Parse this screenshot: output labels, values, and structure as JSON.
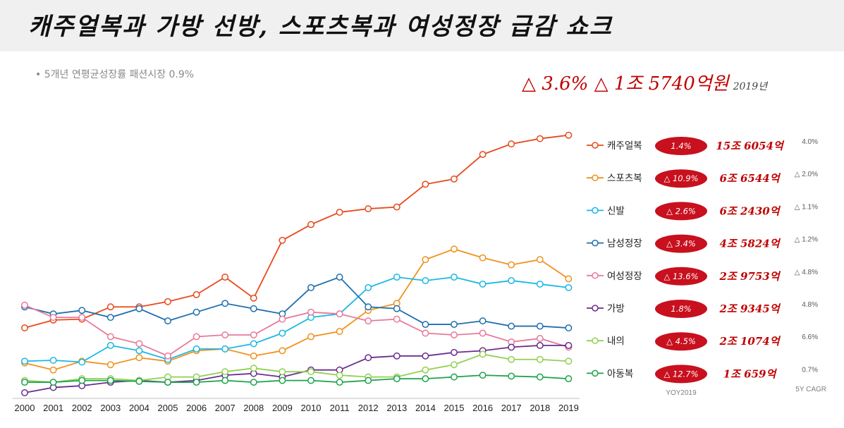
{
  "title": "캐주얼복과 가방 선방, 스포츠복과 여성정장 급감 쇼크",
  "subtitle": "•  5개년 연평균성장률 패션시장 0.9%",
  "headline": {
    "text": "△ 3.6%  △ 1조 5740억원",
    "year": "2019년"
  },
  "footer": {
    "yoy_label": "YOY2019",
    "cagr_label": "5Y CAGR"
  },
  "chart_data": {
    "type": "line",
    "x": [
      "2000",
      "2001",
      "2002",
      "2003",
      "2004",
      "2005",
      "2006",
      "2007",
      "2008",
      "2009",
      "2010",
      "2011",
      "2012",
      "2013",
      "2014",
      "2015",
      "2016",
      "2017",
      "2018",
      "2019"
    ],
    "grid": false,
    "legend_position": "right",
    "series": [
      {
        "name": "캐주얼복",
        "color": "#e8481c",
        "yoy": "1.4%",
        "amount": "15조 6054억",
        "cagr": "4.0%",
        "values": [
          30,
          34.5,
          35,
          42,
          42,
          45,
          49,
          59,
          47,
          80,
          89,
          96,
          98,
          99,
          112,
          115,
          129,
          135,
          138,
          140
        ]
      },
      {
        "name": "스포츠복",
        "color": "#f0911e",
        "yoy": "△ 10.9%",
        "amount": "6조 6544억",
        "cagr": "△ 2.0%",
        "values": [
          10,
          6,
          11,
          9,
          13,
          11,
          17,
          18,
          14,
          17,
          25,
          28,
          40,
          44,
          69,
          75,
          70,
          66,
          69,
          58
        ]
      },
      {
        "name": "신발",
        "color": "#1ab8e4",
        "yoy": "△ 2.6%",
        "amount": "6조 2430억",
        "cagr": "△ 1.1%",
        "values": [
          11,
          11.5,
          10.5,
          20,
          17,
          12,
          18,
          18,
          21,
          27,
          36,
          38,
          53,
          59,
          57,
          59,
          55,
          57,
          55,
          53
        ]
      },
      {
        "name": "남성정장",
        "color": "#1f6fae",
        "yoy": "△ 3.4%",
        "amount": "4조 5824억",
        "cagr": "△ 1.2%",
        "values": [
          42,
          38,
          40,
          36,
          41,
          34,
          39,
          44,
          41,
          38,
          53,
          59,
          42,
          41,
          32,
          32,
          34,
          31,
          31,
          30
        ]
      },
      {
        "name": "여성정장",
        "color": "#e8799a",
        "yoy": "△ 13.6%",
        "amount": "2조 9753억",
        "cagr": "△ 4.8%",
        "values": [
          43,
          36,
          36,
          25,
          21,
          14,
          25,
          26,
          26,
          35,
          39,
          38,
          34,
          35,
          27,
          26,
          27,
          22,
          24,
          19
        ]
      },
      {
        "name": "가방",
        "color": "#6a2d8f",
        "yoy": "1.8%",
        "amount": "2조 9345억",
        "cagr": "4.8%",
        "values": [
          -7,
          -4,
          -3,
          -1,
          0,
          -1,
          0,
          3,
          4,
          2,
          6,
          6,
          13,
          14,
          14,
          16,
          17,
          19,
          20,
          20
        ]
      },
      {
        "name": "내의",
        "color": "#92d050",
        "yoy": "△ 4.5%",
        "amount": "2조 1074억",
        "cagr": "6.6%",
        "values": [
          0,
          -1,
          1,
          1,
          0,
          2,
          2,
          5,
          7,
          5,
          5,
          3,
          2,
          2,
          6,
          9,
          15,
          12,
          12,
          11
        ]
      },
      {
        "name": "아동복",
        "color": "#1aa44a",
        "yoy": "△ 12.7%",
        "amount": "1조 659억",
        "cagr": "0.7%",
        "values": [
          -1,
          -1,
          0,
          0,
          -0.5,
          -1,
          -1,
          0,
          -1,
          0,
          0,
          -1,
          0,
          1,
          1,
          2,
          3,
          2.5,
          2,
          1
        ]
      }
    ]
  }
}
